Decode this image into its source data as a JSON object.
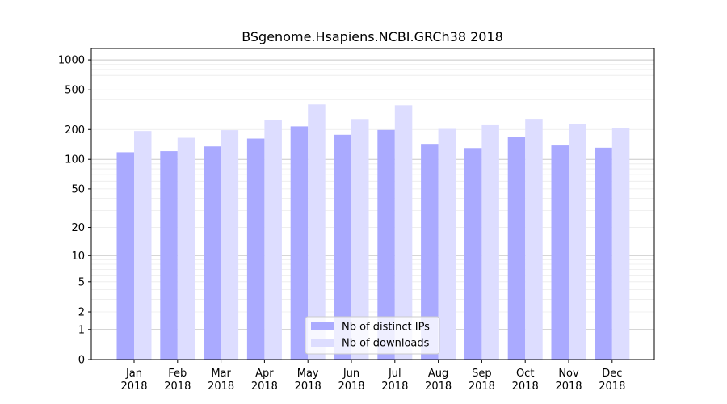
{
  "chart_data": {
    "type": "bar",
    "title": "BSgenome.Hsapiens.NCBI.GRCh38 2018",
    "xlabel": "",
    "ylabel": "",
    "yscale": "log1p",
    "ylim": [
      0,
      1300
    ],
    "yticks": [
      {
        "value": 0,
        "label": "0"
      },
      {
        "value": 1,
        "label": "1"
      },
      {
        "value": 2,
        "label": "2"
      },
      {
        "value": 5,
        "label": "5"
      },
      {
        "value": 10,
        "label": "10"
      },
      {
        "value": 20,
        "label": "20"
      },
      {
        "value": 50,
        "label": "50"
      },
      {
        "value": 100,
        "label": "100"
      },
      {
        "value": 200,
        "label": "200"
      },
      {
        "value": 500,
        "label": "500"
      },
      {
        "value": 1000,
        "label": "1000"
      }
    ],
    "grid_major": [
      1,
      10,
      100,
      1000
    ],
    "grid_minor": [
      2,
      3,
      4,
      5,
      6,
      7,
      8,
      9,
      20,
      30,
      40,
      50,
      60,
      70,
      80,
      90,
      200,
      300,
      400,
      500,
      600,
      700,
      800,
      900
    ],
    "categories": [
      {
        "month": "Jan",
        "year": "2018"
      },
      {
        "month": "Feb",
        "year": "2018"
      },
      {
        "month": "Mar",
        "year": "2018"
      },
      {
        "month": "Apr",
        "year": "2018"
      },
      {
        "month": "May",
        "year": "2018"
      },
      {
        "month": "Jun",
        "year": "2018"
      },
      {
        "month": "Jul",
        "year": "2018"
      },
      {
        "month": "Aug",
        "year": "2018"
      },
      {
        "month": "Sep",
        "year": "2018"
      },
      {
        "month": "Oct",
        "year": "2018"
      },
      {
        "month": "Nov",
        "year": "2018"
      },
      {
        "month": "Dec",
        "year": "2018"
      }
    ],
    "series": [
      {
        "name": "Nb of distinct IPs",
        "color": "#aaaaff",
        "values": [
          118,
          121,
          135,
          162,
          215,
          177,
          198,
          143,
          130,
          168,
          138,
          131
        ]
      },
      {
        "name": "Nb of downloads",
        "color": "#ddddff",
        "values": [
          193,
          165,
          197,
          250,
          357,
          255,
          350,
          203,
          221,
          256,
          225,
          207
        ]
      }
    ],
    "legend": "bottom-center"
  }
}
